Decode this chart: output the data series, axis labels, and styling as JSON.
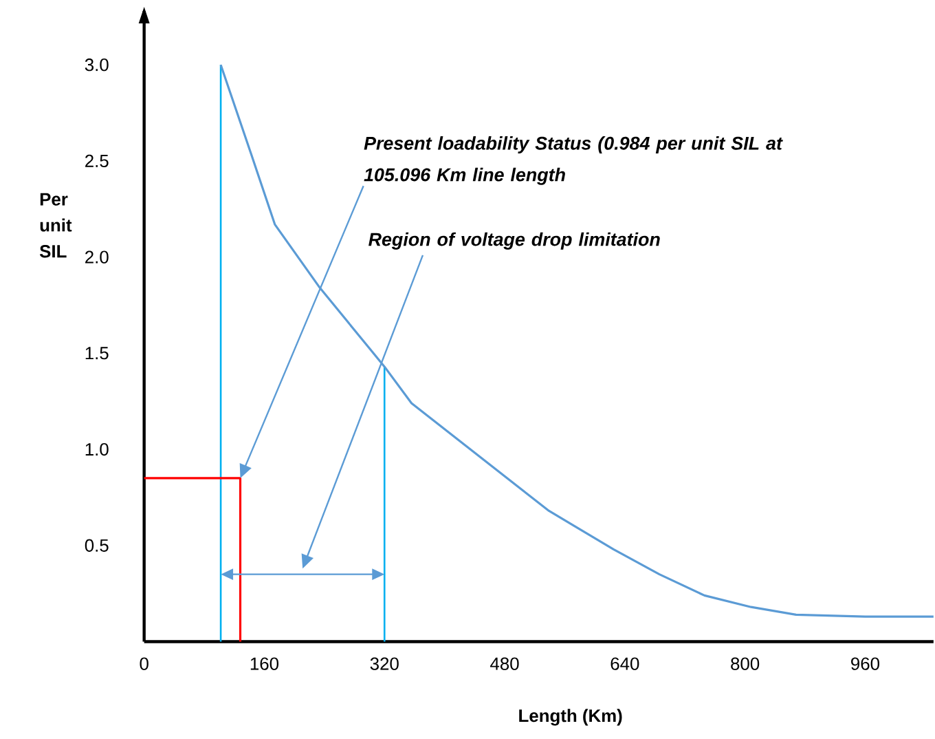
{
  "chart_data": {
    "type": "line",
    "xlabel": "Length (Km)",
    "ylabel": "Per unit SIL",
    "marker": "none",
    "line_style": "solid",
    "xlim": [
      0,
      1051
    ],
    "ylim": [
      0,
      3.28
    ],
    "xticks": [
      0,
      160,
      320,
      480,
      640,
      800,
      960
    ],
    "yticks": [
      {
        "value": 0.5,
        "label": "0.5"
      },
      {
        "value": 1,
        "label": "1.0"
      },
      {
        "value": 1.5,
        "label": "1.5"
      },
      {
        "value": 2,
        "label": "2.0"
      },
      {
        "value": 2.5,
        "label": "2.5"
      },
      {
        "value": 3,
        "label": "3.0"
      }
    ],
    "series": [
      {
        "color": "#5b9bd5",
        "x": [
          102,
          143,
          174,
          234,
          320,
          356,
          503,
          539,
          625,
          686,
          746,
          808,
          868,
          960,
          1051
        ],
        "values": [
          3.0,
          2.53,
          2.17,
          1.84,
          1.43,
          1.24,
          0.79,
          0.68,
          0.48,
          0.35,
          0.24,
          0.18,
          0.14,
          0.13,
          0.13
        ]
      },
      {
        "color": "#ff0000",
        "x": [
          0,
          128,
          128
        ],
        "values": [
          0.85,
          0.85,
          0
        ]
      }
    ],
    "ref_lines": [
      {
        "axis": "x",
        "value": 102,
        "color": "#00b0f0"
      },
      {
        "axis": "x",
        "value": 320,
        "color": "#00b0f0"
      }
    ],
    "annotations": [
      "Present loadability Status (0.984 per unit SIL at 105.096 Km line length",
      "Region of voltage drop limitation"
    ]
  }
}
